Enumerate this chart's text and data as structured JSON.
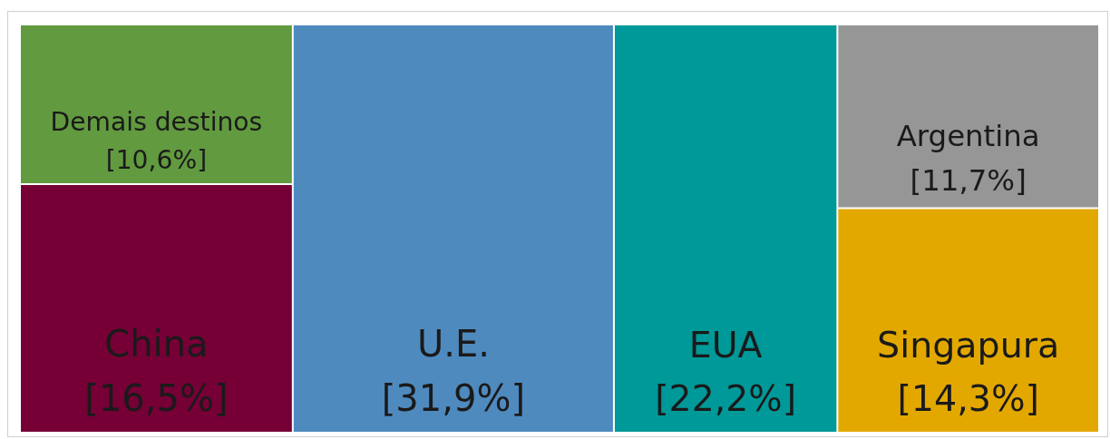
{
  "chart_data": {
    "type": "other",
    "categories": [
      "Demais destinos",
      "China",
      "U.E.",
      "EUA",
      "Argentina",
      "Singapura"
    ],
    "values": [
      10.6,
      16.5,
      31.9,
      22.2,
      11.7,
      14.3
    ],
    "value_labels": [
      "[10,6%]",
      "[16,5%]",
      "[31,9%]",
      "[22,2%]",
      "[11,7%]",
      "[14,3%]"
    ],
    "colors": [
      "#629a3f",
      "#760036",
      "#4f8abe",
      "#009999",
      "#969696",
      "#e3a800"
    ]
  }
}
